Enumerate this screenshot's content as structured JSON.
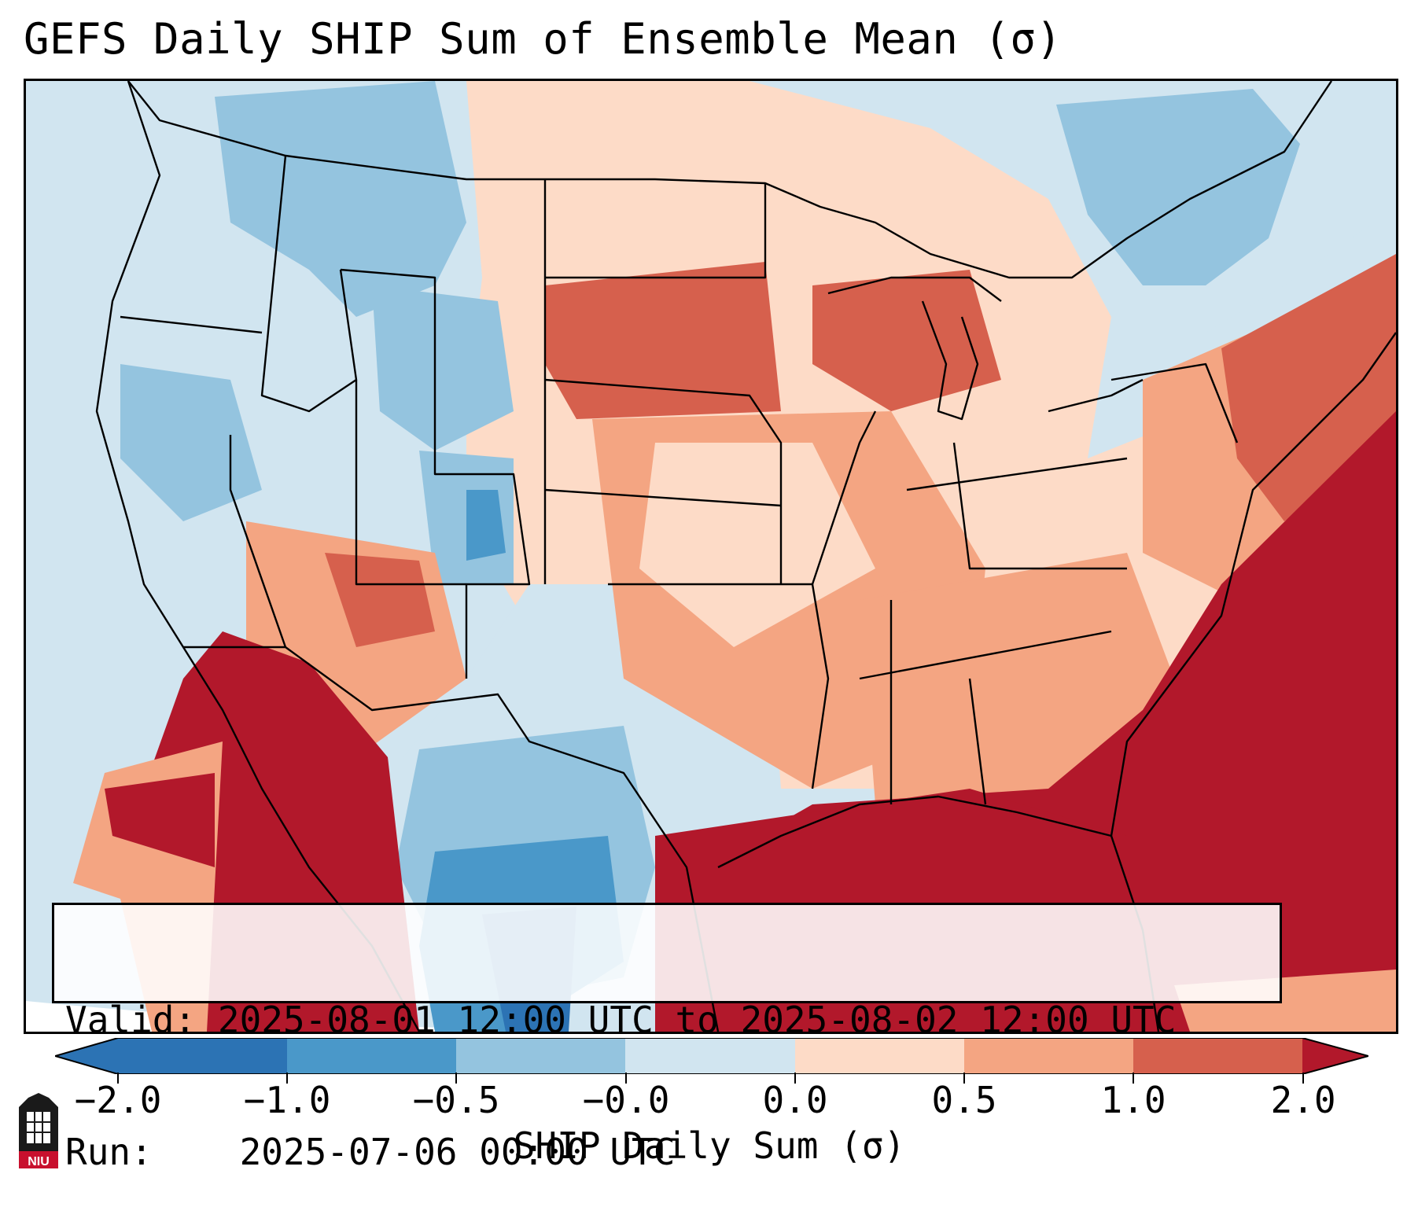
{
  "title": "GEFS Daily SHIP Sum of Ensemble Mean (σ)",
  "info": {
    "valid_label": "Valid:",
    "valid_value": "2025-08-01 12:00 UTC to 2025-08-02 12:00 UTC",
    "run_label": "Run:",
    "run_value": "2025-07-06 00:00 UTC"
  },
  "colorbar": {
    "label": "SHIP Daily Sum (σ)",
    "ticks": [
      "−2.0",
      "−1.0",
      "−0.5",
      "−0.0",
      "0.0",
      "0.5",
      "1.0",
      "2.0"
    ],
    "colors": [
      "#2c73b4",
      "#4a98c9",
      "#94c4df",
      "#d1e5f0",
      "#f7f7f7",
      "#fddbc7",
      "#f4a582",
      "#d6604d",
      "#b2182b"
    ]
  },
  "map": {
    "region": "Contiguous United States",
    "palette": {
      "strong_blue": "#2c73b4",
      "blue": "#4a98c9",
      "light_blue": "#94c4df",
      "pale_blue": "#d1e5f0",
      "pale_red": "#fddbc7",
      "light_red": "#f4a582",
      "red": "#d6604d",
      "dark_red": "#b2182b"
    }
  },
  "logo": {
    "text": "NIU"
  }
}
